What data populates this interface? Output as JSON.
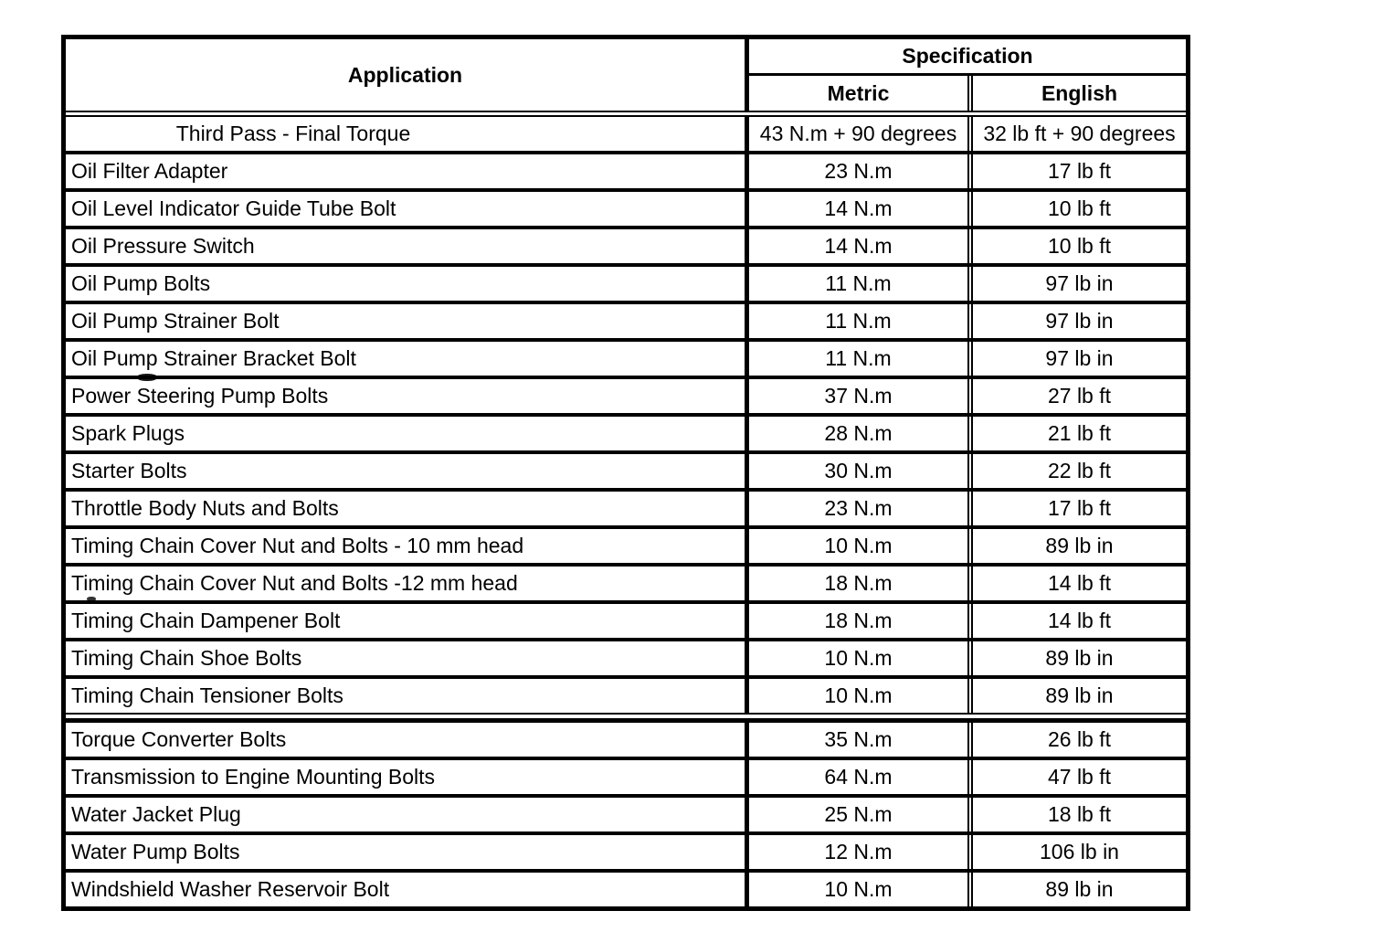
{
  "table": {
    "header": {
      "application": "Application",
      "specification": "Specification",
      "metric": "Metric",
      "english": "English"
    },
    "rows": [
      {
        "application": "Third Pass - Final Torque",
        "metric": "43 N.m + 90 degrees",
        "english": "32 lb ft + 90 degrees",
        "sub_row_centered": true
      },
      {
        "application": "Oil Filter Adapter",
        "metric": "23 N.m",
        "english": "17 lb ft"
      },
      {
        "application": "Oil Level Indicator Guide Tube Bolt",
        "metric": "14 N.m",
        "english": "10 lb ft"
      },
      {
        "application": "Oil Pressure Switch",
        "metric": "14 N.m",
        "english": "10 lb ft"
      },
      {
        "application": "Oil Pump Bolts",
        "metric": "11 N.m",
        "english": "97 lb in"
      },
      {
        "application": "Oil Pump Strainer Bolt",
        "metric": "11 N.m",
        "english": "97 lb in"
      },
      {
        "application": "Oil Pump Strainer Bracket Bolt",
        "metric": "11 N.m",
        "english": "97 lb in"
      },
      {
        "application": "Power Steering Pump Bolts",
        "metric": "37 N.m",
        "english": "27 lb ft"
      },
      {
        "application": "Spark Plugs",
        "metric": "28 N.m",
        "english": "21 lb ft"
      },
      {
        "application": "Starter Bolts",
        "metric": "30 N.m",
        "english": "22 lb ft"
      },
      {
        "application": "Throttle Body Nuts and Bolts",
        "metric": "23 N.m",
        "english": "17 lb ft"
      },
      {
        "application": "Timing Chain Cover Nut and Bolts - 10 mm head",
        "metric": "10 N.m",
        "english": "89 lb in"
      },
      {
        "application": "Timing Chain Cover Nut and Bolts -12 mm head",
        "metric": "18 N.m",
        "english": "14 lb ft"
      },
      {
        "application": "Timing Chain Dampener Bolt",
        "metric": "18 N.m",
        "english": "14 lb ft"
      },
      {
        "application": "Timing Chain Shoe Bolts",
        "metric": "10 N.m",
        "english": "89 lb in"
      },
      {
        "application": "Timing Chain Tensioner Bolts",
        "metric": "10 N.m",
        "english": "89 lb in"
      },
      {
        "application": "Torque Converter Bolts",
        "metric": "35 N.m",
        "english": "26 lb ft",
        "section_break_before": true
      },
      {
        "application": "Transmission to Engine Mounting Bolts",
        "metric": "64 N.m",
        "english": "47 lb ft"
      },
      {
        "application": "Water Jacket Plug",
        "metric": "25 N.m",
        "english": "18 lb ft"
      },
      {
        "application": "Water Pump Bolts",
        "metric": "12 N.m",
        "english": "106 lb in"
      },
      {
        "application": "Windshield Washer Reservoir Bolt",
        "metric": "10 N.m",
        "english": "89 lb in"
      }
    ],
    "colors": {
      "border": "#000000",
      "text": "#000000",
      "background": "#ffffff"
    }
  }
}
